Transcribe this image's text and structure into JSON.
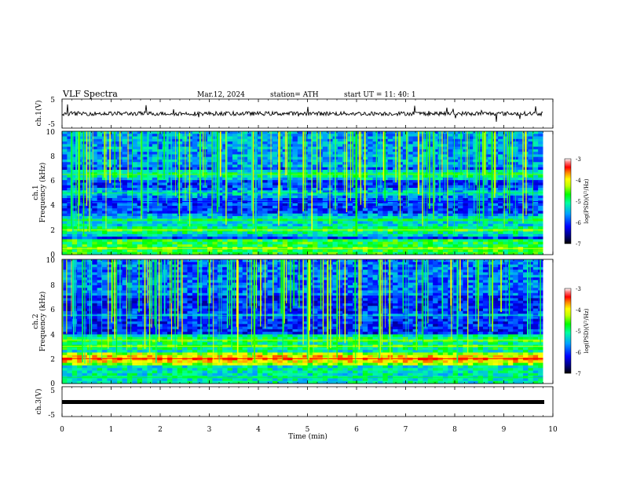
{
  "header": {
    "title": "VLF  Spectra",
    "date": "Mar.12, 2024",
    "station": "station= ATH",
    "start": "start  UT  =    11: 40: 1"
  },
  "panels": {
    "ch1_label": "ch.1(V)",
    "spec1_label_a": "ch.1",
    "spec1_label_b": "Frequency  (kHz)",
    "spec2_label_a": "ch.2",
    "spec2_label_b": "Frequency  (kHz)",
    "ch3_label": "ch.3(V)",
    "xlabel": "Time  (min)"
  },
  "colorbar": {
    "label": "log(PSD)(V²/Hz)",
    "ticks": [
      "-3",
      "-4",
      "-5",
      "-6",
      "-7"
    ]
  },
  "chart_data": [
    {
      "type": "line",
      "name": "ch.1 waveform",
      "ylabel": "ch.1(V)",
      "ylim": [
        -5,
        5
      ],
      "yticks": [
        "5",
        "-5"
      ],
      "xlim": [
        0,
        10
      ],
      "description_values": {
        "baseline": 0,
        "typical_amplitude": 1
      }
    },
    {
      "type": "heatmap",
      "ylabel": "Frequency  (kHz)",
      "xlim": [
        0,
        10
      ],
      "ylim": [
        0,
        10
      ],
      "yticks": [
        "0",
        "2",
        "4",
        "6",
        "8",
        "10"
      ],
      "data_extent_min": 9.8,
      "color_range": [
        -7,
        -3
      ],
      "bands_khz": [
        {
          "f": 0.5,
          "level": -4.8
        },
        {
          "f": 2.0,
          "level": -5.0
        },
        {
          "f": 2.8,
          "level": -5.3
        },
        {
          "f": 4.3,
          "level": -6.9
        },
        {
          "f": 5.0,
          "level": -5.6
        },
        {
          "f": 6.5,
          "level": -5.2
        }
      ]
    },
    {
      "type": "heatmap",
      "ylabel": "Frequency  (kHz)",
      "xlim": [
        0,
        10
      ],
      "ylim": [
        0,
        10
      ],
      "yticks": [
        "0",
        "2",
        "4",
        "6",
        "8",
        "10"
      ],
      "data_extent_min": 9.8,
      "color_range": [
        -7,
        -3
      ],
      "bands_khz": [
        {
          "f": 0.5,
          "level": -5.5
        },
        {
          "f": 2.0,
          "level": -4.0
        },
        {
          "f": 3.0,
          "level": -5.0
        },
        {
          "f": 3.5,
          "level": -5.0
        },
        {
          "f": 5.5,
          "level": -6.0
        }
      ]
    },
    {
      "type": "line",
      "name": "ch.3 waveform",
      "ylabel": "ch.3(V)",
      "ylim": [
        -5,
        5
      ],
      "yticks": [
        "5",
        "-5"
      ],
      "xlim": [
        0,
        10
      ],
      "xticks": [
        "0",
        "1",
        "2",
        "3",
        "4",
        "5",
        "6",
        "7",
        "8",
        "9",
        "10"
      ],
      "xlabel": "Time  (min)",
      "description_values": {
        "constant_level": -2
      }
    }
  ]
}
